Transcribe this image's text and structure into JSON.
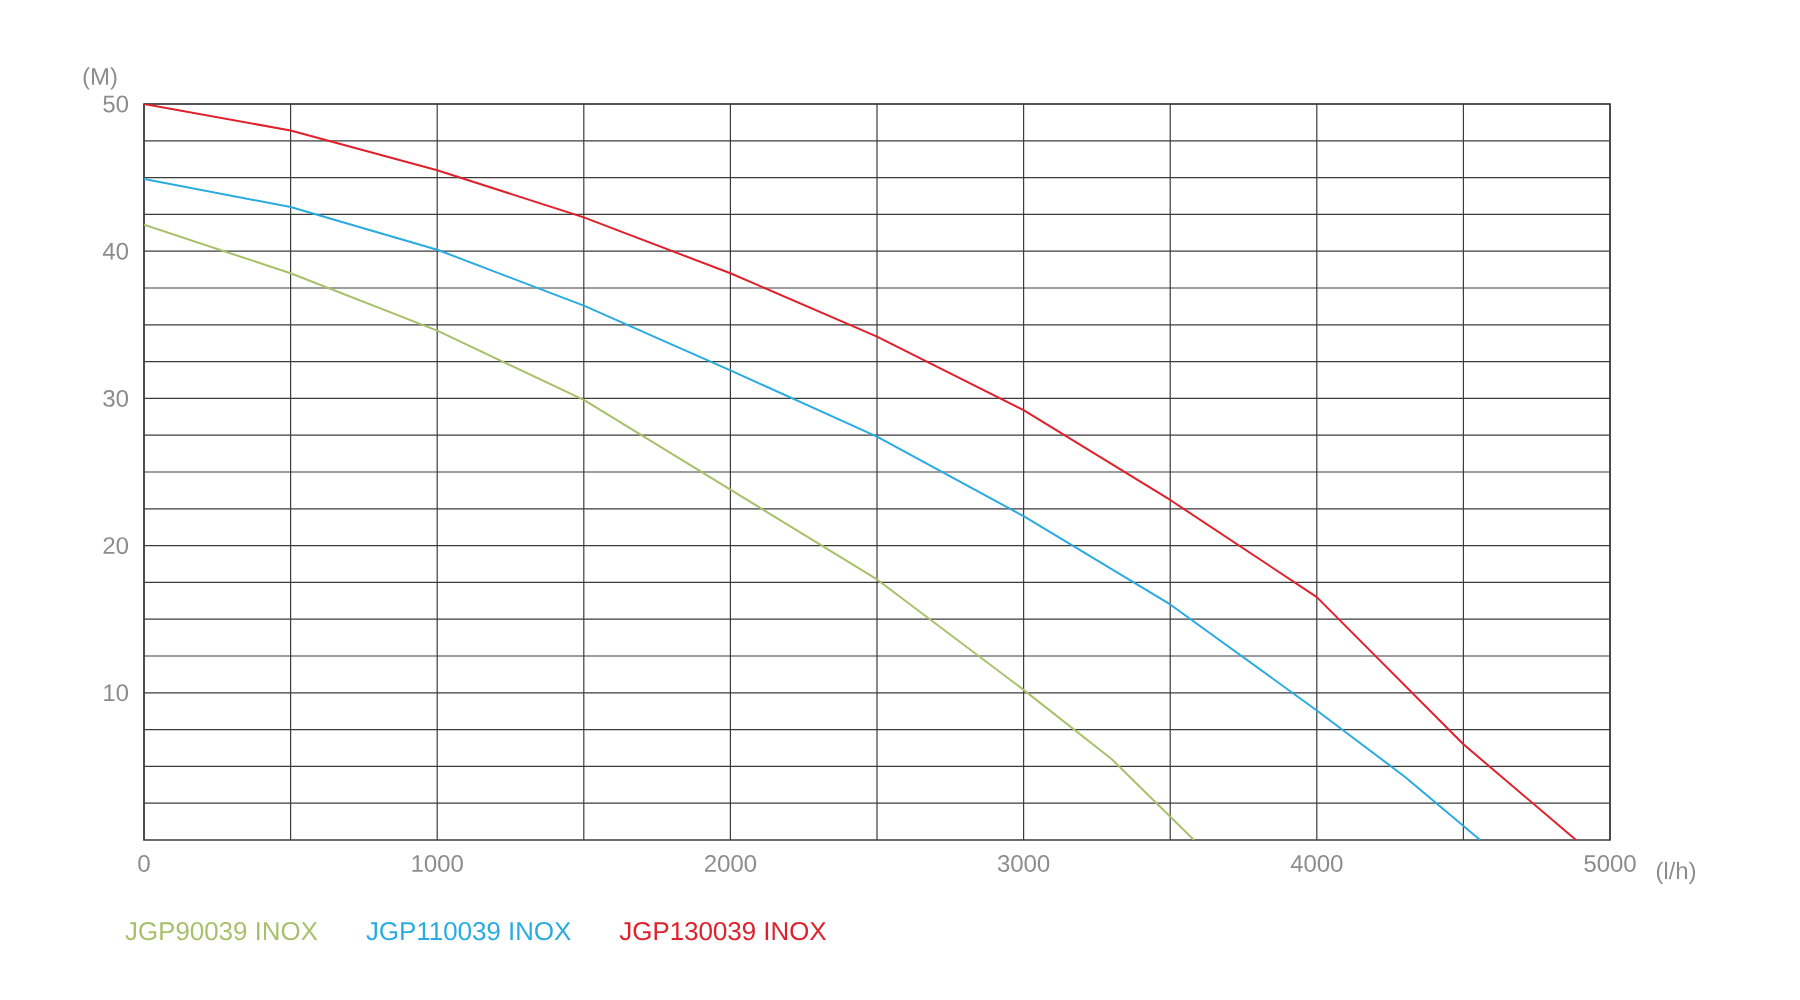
{
  "chart_data": {
    "type": "line",
    "xlabel": "(l/h)",
    "ylabel": "(M)",
    "xlim": [
      0,
      5000
    ],
    "ylim": [
      0,
      50
    ],
    "xticks": [
      0,
      1000,
      2000,
      3000,
      4000,
      5000,
      {
        "value": 500,
        "label": null
      },
      {
        "value": 1500,
        "label": null
      },
      {
        "value": 2500,
        "label": null
      },
      {
        "value": 3500,
        "label": null
      },
      {
        "value": 4500,
        "label": null
      }
    ],
    "yticks": [
      10,
      20,
      30,
      40,
      50,
      {
        "value": 2.5,
        "label": null
      },
      {
        "value": 5,
        "label": null
      },
      {
        "value": 7.5,
        "label": null
      },
      {
        "value": 12.5,
        "label": null
      },
      {
        "value": 15,
        "label": null
      },
      {
        "value": 17.5,
        "label": null
      },
      {
        "value": 22.5,
        "label": null
      },
      {
        "value": 25,
        "label": null
      },
      {
        "value": 27.5,
        "label": null
      },
      {
        "value": 32.5,
        "label": null
      },
      {
        "value": 35,
        "label": null
      },
      {
        "value": 37.5,
        "label": null
      },
      {
        "value": 42.5,
        "label": null
      },
      {
        "value": 45,
        "label": null
      },
      {
        "value": 47.5,
        "label": null
      }
    ],
    "grid": true,
    "legend": "bottom",
    "marker": "none",
    "line_style": "solid",
    "series": [
      {
        "name": "JGP90039 INOX",
        "color": "#a8c06a",
        "x": [
          0,
          500,
          1000,
          1500,
          2000,
          2500,
          3000,
          3300,
          3581
        ],
        "values": [
          41.8,
          38.5,
          34.6,
          29.9,
          23.8,
          17.7,
          10.2,
          5.5,
          0
        ]
      },
      {
        "name": "JGP110039 INOX",
        "color": "#29abe2",
        "x": [
          0,
          500,
          1000,
          1500,
          2000,
          2500,
          3000,
          3500,
          4000,
          4300,
          4557
        ],
        "values": [
          44.9,
          43.0,
          40.1,
          36.3,
          31.9,
          27.4,
          22.0,
          16.0,
          8.8,
          4.3,
          0
        ]
      },
      {
        "name": "JGP130039 INOX",
        "color": "#e0202a",
        "x": [
          0,
          500,
          1000,
          1500,
          2000,
          2500,
          3000,
          3500,
          4000,
          4500,
          4884
        ],
        "values": [
          50,
          48.2,
          45.5,
          42.3,
          38.5,
          34.2,
          29.2,
          23.1,
          16.5,
          6.5,
          0
        ]
      }
    ]
  }
}
